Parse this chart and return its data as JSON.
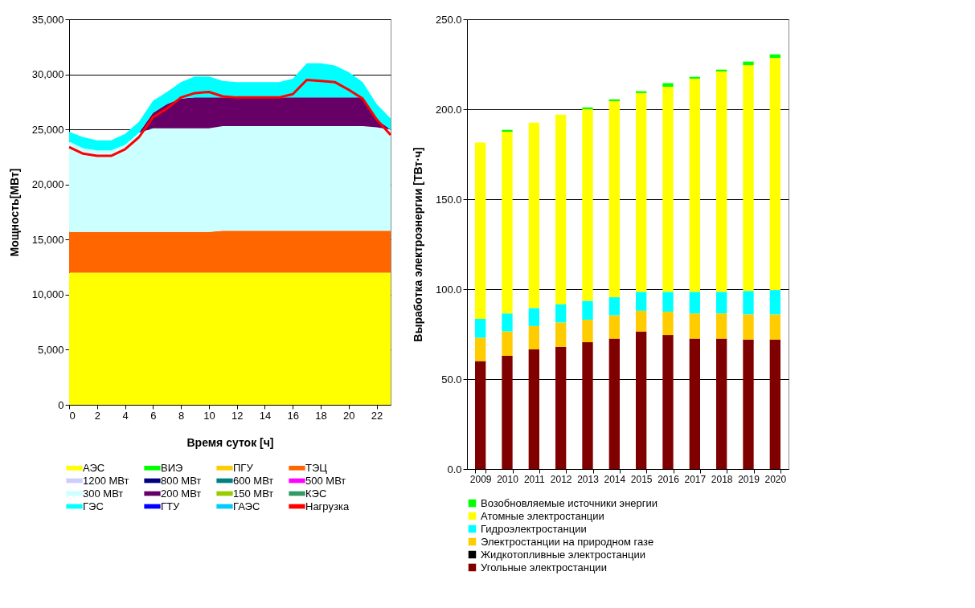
{
  "chart_data": [
    {
      "type": "area",
      "xlabel": "Время суток [ч]",
      "ylabel": "Мощность[МВт]",
      "x": [
        0,
        1,
        2,
        3,
        4,
        5,
        6,
        7,
        8,
        9,
        10,
        11,
        12,
        13,
        14,
        15,
        16,
        17,
        18,
        19,
        20,
        21,
        22,
        23
      ],
      "xlim": [
        0,
        23
      ],
      "xticks": [
        0,
        2,
        4,
        6,
        8,
        10,
        12,
        14,
        16,
        18,
        20,
        22
      ],
      "ylim": [
        0,
        35000
      ],
      "yticks": [
        {
          "value": 0,
          "label": "0"
        },
        {
          "value": 5000,
          "label": "5,000"
        },
        {
          "value": 10000,
          "label": "10,000"
        },
        {
          "value": 15000,
          "label": "15,000"
        },
        {
          "value": 20000,
          "label": "20,000"
        },
        {
          "value": 25000,
          "label": "25,000"
        },
        {
          "value": 30000,
          "label": "30,000"
        },
        {
          "value": 35000,
          "label": "35,000"
        }
      ],
      "grid": "y",
      "legend": "bottom",
      "stacked": true,
      "series": [
        {
          "name": "АЭС",
          "color": "#ffff00",
          "values": [
            12000,
            12000,
            12000,
            12000,
            12000,
            12000,
            12000,
            12000,
            12000,
            12000,
            12000,
            12000,
            12000,
            12000,
            12000,
            12000,
            12000,
            12000,
            12000,
            12000,
            12000,
            12000,
            12000,
            12000
          ]
        },
        {
          "name": "ВИЭ",
          "color": "#00ff00",
          "values": [
            null,
            null,
            null,
            null,
            null,
            null,
            null,
            null,
            null,
            null,
            null,
            null,
            null,
            null,
            null,
            null,
            null,
            null,
            null,
            null,
            null,
            null,
            null,
            null
          ]
        },
        {
          "name": "ПГУ",
          "color": "#ffcc00",
          "values": [
            null,
            null,
            null,
            null,
            null,
            null,
            null,
            null,
            null,
            null,
            null,
            null,
            null,
            null,
            null,
            null,
            null,
            null,
            null,
            null,
            null,
            null,
            null,
            null
          ]
        },
        {
          "name": "ТЭЦ",
          "color": "#ff6600",
          "values": [
            3700,
            3700,
            3700,
            3700,
            3700,
            3700,
            3700,
            3700,
            3700,
            3700,
            3700,
            3800,
            3800,
            3800,
            3800,
            3800,
            3800,
            3800,
            3800,
            3800,
            3800,
            3800,
            3800,
            3800
          ]
        },
        {
          "name": "1200 МВт",
          "color": "#ccccff",
          "values": [
            null,
            null,
            null,
            null,
            null,
            null,
            null,
            null,
            null,
            null,
            null,
            null,
            null,
            null,
            null,
            null,
            null,
            null,
            null,
            null,
            null,
            null,
            null,
            null
          ]
        },
        {
          "name": "800 МВт",
          "color": "#000080",
          "values": [
            null,
            null,
            null,
            null,
            null,
            null,
            null,
            null,
            null,
            null,
            null,
            null,
            null,
            null,
            null,
            null,
            null,
            null,
            null,
            null,
            null,
            null,
            null,
            null
          ]
        },
        {
          "name": "600 МВт",
          "color": "#008080",
          "values": [
            null,
            null,
            null,
            null,
            null,
            null,
            null,
            null,
            null,
            null,
            null,
            null,
            null,
            null,
            null,
            null,
            null,
            null,
            null,
            null,
            null,
            null,
            null,
            null
          ]
        },
        {
          "name": "500 МВт",
          "color": "#ff00ff",
          "values": [
            null,
            null,
            null,
            null,
            null,
            null,
            null,
            null,
            null,
            null,
            null,
            null,
            null,
            null,
            null,
            null,
            null,
            null,
            null,
            null,
            null,
            null,
            null,
            null
          ]
        },
        {
          "name": "300 МВт",
          "color": "#ccffff",
          "values": [
            8200,
            7600,
            7400,
            7400,
            7900,
            9000,
            9400,
            9400,
            9400,
            9400,
            9400,
            9500,
            9500,
            9500,
            9500,
            9500,
            9500,
            9500,
            9500,
            9500,
            9500,
            9500,
            9400,
            9200
          ]
        },
        {
          "name": "200 МВт",
          "color": "#660066",
          "values": [
            0,
            0,
            0,
            0,
            0,
            0,
            1400,
            2200,
            2700,
            2800,
            2800,
            2600,
            2600,
            2600,
            2600,
            2600,
            2600,
            2600,
            2600,
            2600,
            2600,
            2600,
            700,
            0
          ]
        },
        {
          "name": "150 МВт",
          "color": "#99cc00",
          "values": [
            null,
            null,
            null,
            null,
            null,
            null,
            null,
            null,
            null,
            null,
            null,
            null,
            null,
            null,
            null,
            null,
            null,
            null,
            null,
            null,
            null,
            null,
            null,
            null
          ]
        },
        {
          "name": "КЭС",
          "color": "#339966",
          "values": [
            null,
            null,
            null,
            null,
            null,
            null,
            null,
            null,
            null,
            null,
            null,
            null,
            null,
            null,
            null,
            null,
            null,
            null,
            null,
            null,
            null,
            null,
            null,
            null
          ]
        },
        {
          "name": "ГЭС",
          "color": "#00ffff",
          "values": [
            900,
            1000,
            900,
            900,
            1000,
            1000,
            1100,
            1100,
            1500,
            1900,
            1900,
            1500,
            1400,
            1400,
            1400,
            1400,
            1700,
            3100,
            3100,
            2900,
            2300,
            1400,
            1400,
            1000
          ]
        },
        {
          "name": "ГТУ",
          "color": "#0000ff",
          "values": [
            null,
            null,
            null,
            null,
            null,
            null,
            null,
            null,
            null,
            null,
            null,
            null,
            null,
            null,
            null,
            null,
            null,
            null,
            null,
            null,
            null,
            null,
            null,
            null
          ]
        },
        {
          "name": "ГАЭС",
          "color": "#00ccff",
          "values": [
            null,
            null,
            null,
            null,
            null,
            null,
            null,
            null,
            null,
            null,
            null,
            null,
            null,
            null,
            null,
            null,
            null,
            null,
            null,
            null,
            null,
            null,
            null,
            null
          ]
        },
        {
          "name": "Нагрузка",
          "color": "#ff0000",
          "type": "line",
          "values": [
            23400,
            22800,
            22600,
            22600,
            23200,
            24300,
            26100,
            26900,
            27900,
            28300,
            28400,
            28000,
            27900,
            27900,
            27900,
            27900,
            28200,
            29500,
            29400,
            29300,
            28600,
            27800,
            25900,
            24500
          ]
        }
      ]
    },
    {
      "type": "bar",
      "ylabel": "Выработка электроэнергии   [ТВт·ч]",
      "categories": [
        "2009",
        "2010",
        "2011",
        "2012",
        "2013",
        "2014",
        "2015",
        "2016",
        "2017",
        "2018",
        "2019",
        "2020"
      ],
      "ylim": [
        0,
        250
      ],
      "yticks": [
        {
          "value": 0,
          "label": "0.0"
        },
        {
          "value": 50,
          "label": "50.0"
        },
        {
          "value": 100,
          "label": "100.0"
        },
        {
          "value": 150,
          "label": "150.0"
        },
        {
          "value": 200,
          "label": "200.0"
        },
        {
          "value": 250,
          "label": "250.0"
        }
      ],
      "grid": "y",
      "legend": "bottom",
      "stacked": true,
      "series": [
        {
          "name": "Угольные электростанции",
          "color": "#800000",
          "values": [
            60,
            63,
            66.5,
            68,
            70.5,
            72.5,
            76.5,
            74.5,
            72.5,
            72.5,
            72,
            72
          ]
        },
        {
          "name": "Жидкотопливные электростанции",
          "color": "#000000",
          "values": [
            0,
            0,
            0,
            0,
            0,
            0,
            0,
            0,
            0,
            0,
            0,
            0
          ]
        },
        {
          "name": "Электростанции на природном газе",
          "color": "#ffcc00",
          "values": [
            13,
            13.5,
            13,
            13.5,
            12.5,
            13,
            11.5,
            13,
            14,
            14,
            14,
            14
          ]
        },
        {
          "name": "Гидроэлектростанции",
          "color": "#00ffff",
          "values": [
            10.5,
            10,
            10,
            10,
            10.5,
            10,
            10.5,
            11,
            12,
            12,
            13,
            13.5
          ]
        },
        {
          "name": "Атомные электростанции",
          "color": "#ffff00",
          "values": [
            98,
            101,
            103,
            105.5,
            106.5,
            109,
            110.5,
            114,
            118.5,
            122.5,
            125.5,
            129
          ]
        },
        {
          "name": "Возобновляемые источники энергии",
          "color": "#00ff00",
          "values": [
            0,
            1,
            0,
            0,
            1,
            1,
            1,
            2,
            1,
            1,
            2,
            2
          ]
        }
      ]
    }
  ]
}
